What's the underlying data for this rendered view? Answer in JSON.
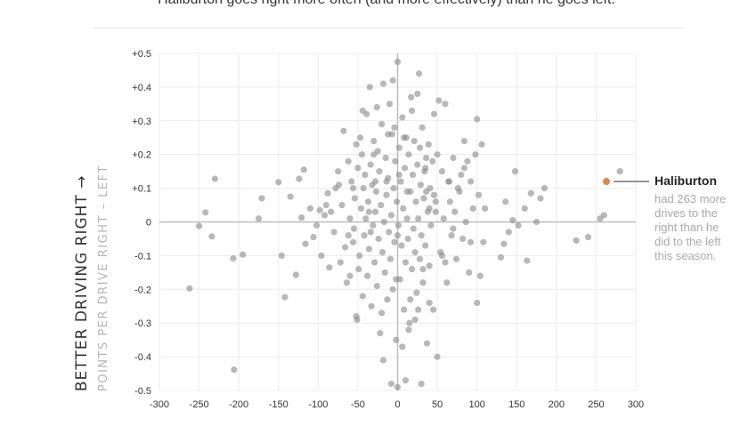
{
  "subtitle": "Haliburton goes right more often (and more effectively) than he goes left.",
  "chart_data": {
    "type": "scatter",
    "title": "",
    "xlabel": "",
    "ylabel": "BETTER DRIVING RIGHT →",
    "ylabel_sub": "POINTS PER DRIVE RIGHT – LEFT",
    "xlim": [
      -300,
      300
    ],
    "ylim": [
      -0.5,
      0.5
    ],
    "x_ticks": [
      "-300",
      "-250",
      "-200",
      "-150",
      "-100",
      "-50",
      "0",
      "50",
      "100",
      "150",
      "200",
      "250",
      "300"
    ],
    "y_ticks": [
      "+0.5",
      "+0.4",
      "+0.3",
      "+0.2",
      "+0.1",
      "0",
      "-0.1",
      "-0.2",
      "-0.3",
      "-0.4",
      "-0.5"
    ],
    "grid": true,
    "colors": {
      "points": "#8c8c8c",
      "highlight": "#d9884f",
      "grid": "#ececec",
      "zero_axis": "#bdbdbd"
    },
    "highlight": {
      "name": "Haliburton",
      "x": 263,
      "y": 0.12,
      "text_lines": [
        "had 263 more",
        "drives to the",
        "right than he",
        "did to the left",
        "this season."
      ]
    },
    "points": [
      [
        -262,
        -0.197
      ],
      [
        -250,
        -0.012
      ],
      [
        -242,
        0.028
      ],
      [
        -234,
        -0.043
      ],
      [
        -230,
        0.128
      ],
      [
        -207,
        -0.108
      ],
      [
        -206,
        -0.438
      ],
      [
        -195,
        -0.097
      ],
      [
        -175,
        0.01
      ],
      [
        -171,
        0.07
      ],
      [
        -150,
        0.118
      ],
      [
        -146,
        -0.1
      ],
      [
        -142,
        -0.223
      ],
      [
        -135,
        0.075
      ],
      [
        -128,
        -0.157
      ],
      [
        -124,
        0.128
      ],
      [
        -121,
        0.013
      ],
      [
        -118,
        0.155
      ],
      [
        -116,
        -0.065
      ],
      [
        -110,
        0.04
      ],
      [
        -106,
        -0.045
      ],
      [
        -102,
        -0.01
      ],
      [
        -96,
        -0.1
      ],
      [
        -92,
        0.02
      ],
      [
        -88,
        0.085
      ],
      [
        -86,
        -0.135
      ],
      [
        -84,
        0.03
      ],
      [
        -80,
        -0.03
      ],
      [
        -78,
        0.1
      ],
      [
        -75,
        0.15
      ],
      [
        -72,
        -0.12
      ],
      [
        -70,
        0.05
      ],
      [
        -68,
        0.27
      ],
      [
        -66,
        -0.075
      ],
      [
        -64,
        -0.18
      ],
      [
        -62,
        0.18
      ],
      [
        -60,
        0.01
      ],
      [
        -58,
        0.12
      ],
      [
        -56,
        -0.06
      ],
      [
        -55,
        -0.02
      ],
      [
        -54,
        0.07
      ],
      [
        -52,
        0.23
      ],
      [
        -51,
        -0.29
      ],
      [
        -50,
        0.16
      ],
      [
        -49,
        -0.14
      ],
      [
        -48,
        -0.1
      ],
      [
        -47,
        0.25
      ],
      [
        -46,
        0.04
      ],
      [
        -45,
        0.2
      ],
      [
        -44,
        -0.22
      ],
      [
        -43,
        0.1
      ],
      [
        -42,
        -0.04
      ],
      [
        -41,
        0.14
      ],
      [
        -40,
        0.01
      ],
      [
        -39,
        0.32
      ],
      [
        -38,
        -0.16
      ],
      [
        -37,
        0.06
      ],
      [
        -36,
        -0.08
      ],
      [
        -35,
        0.4
      ],
      [
        -34,
        0.17
      ],
      [
        -33,
        -0.25
      ],
      [
        -32,
        0.11
      ],
      [
        -31,
        -0.01
      ],
      [
        -30,
        0.24
      ],
      [
        -29,
        -0.12
      ],
      [
        -28,
        0.03
      ],
      [
        -27,
        0.09
      ],
      [
        -26,
        -0.19
      ],
      [
        -25,
        0.21
      ],
      [
        -24,
        -0.05
      ],
      [
        -23,
        0.15
      ],
      [
        -22,
        -0.33
      ],
      [
        -21,
        0.05
      ],
      [
        -20,
        0.29
      ],
      [
        -19,
        -0.09
      ],
      [
        -18,
        0.41
      ],
      [
        -17,
        0.0
      ],
      [
        -16,
        -0.15
      ],
      [
        -15,
        0.19
      ],
      [
        -14,
        0.08
      ],
      [
        -13,
        -0.23
      ],
      [
        -12,
        0.13
      ],
      [
        -11,
        -0.03
      ],
      [
        -10,
        0.35
      ],
      [
        -9,
        -0.11
      ],
      [
        -8,
        0.02
      ],
      [
        -7,
        0.26
      ],
      [
        -6,
        -0.2
      ],
      [
        -5,
        0.1
      ],
      [
        -4,
        -0.06
      ],
      [
        -3,
        0.18
      ],
      [
        -2,
        -0.35
      ],
      [
        -1,
        0.06
      ],
      [
        0,
        0.475
      ],
      [
        1,
        -0.01
      ],
      [
        2,
        0.22
      ],
      [
        3,
        -0.17
      ],
      [
        4,
        0.12
      ],
      [
        5,
        -0.07
      ],
      [
        6,
        0.31
      ],
      [
        7,
        0.04
      ],
      [
        8,
        -0.26
      ],
      [
        9,
        0.16
      ],
      [
        10,
        -0.12
      ],
      [
        11,
        0.25
      ],
      [
        12,
        0.01
      ],
      [
        13,
        -0.05
      ],
      [
        14,
        0.2
      ],
      [
        15,
        -0.3
      ],
      [
        16,
        0.09
      ],
      [
        17,
        0.37
      ],
      [
        18,
        -0.14
      ],
      [
        19,
        0.14
      ],
      [
        20,
        -0.02
      ],
      [
        21,
        0.24
      ],
      [
        22,
        -0.09
      ],
      [
        23,
        0.06
      ],
      [
        24,
        -0.21
      ],
      [
        25,
        0.17
      ],
      [
        26,
        0.01
      ],
      [
        27,
        0.44
      ],
      [
        28,
        -0.11
      ],
      [
        29,
        0.11
      ],
      [
        30,
        -0.04
      ],
      [
        31,
        0.28
      ],
      [
        32,
        -0.18
      ],
      [
        33,
        0.07
      ],
      [
        34,
        0.15
      ],
      [
        35,
        -0.07
      ],
      [
        36,
        0.19
      ],
      [
        37,
        -0.36
      ],
      [
        38,
        0.03
      ],
      [
        39,
        0.23
      ],
      [
        40,
        -0.13
      ],
      [
        41,
        0.1
      ],
      [
        42,
        -0.01
      ],
      [
        44,
        0.18
      ],
      [
        45,
        -0.26
      ],
      [
        46,
        0.08
      ],
      [
        48,
        0.06
      ],
      [
        50,
        0.2
      ],
      [
        52,
        0.36
      ],
      [
        54,
        -0.09
      ],
      [
        56,
        0.15
      ],
      [
        58,
        0.01
      ],
      [
        60,
        0.35
      ],
      [
        62,
        -0.18
      ],
      [
        64,
        0.12
      ],
      [
        66,
        0.06
      ],
      [
        68,
        -0.04
      ],
      [
        70,
        0.19
      ],
      [
        72,
        0.03
      ],
      [
        74,
        -0.11
      ],
      [
        76,
        0.1
      ],
      [
        78,
        0.09
      ],
      [
        80,
        0.14
      ],
      [
        82,
        -0.05
      ],
      [
        84,
        0.24
      ],
      [
        86,
        0.0
      ],
      [
        88,
        0.18
      ],
      [
        90,
        -0.15
      ],
      [
        92,
        0.12
      ],
      [
        95,
        0.04
      ],
      [
        98,
        0.2
      ],
      [
        100,
        0.305
      ],
      [
        102,
        0.08
      ],
      [
        104,
        -0.16
      ],
      [
        106,
        0.23
      ],
      [
        108,
        -0.06
      ],
      [
        110,
        0.04
      ],
      [
        130,
        -0.105
      ],
      [
        134,
        -0.065
      ],
      [
        136,
        0.06
      ],
      [
        140,
        -0.03
      ],
      [
        145,
        0.005
      ],
      [
        148,
        0.15
      ],
      [
        152,
        -0.01
      ],
      [
        160,
        0.04
      ],
      [
        163,
        -0.115
      ],
      [
        168,
        0.085
      ],
      [
        175,
        0.0
      ],
      [
        180,
        0.07
      ],
      [
        185,
        0.1
      ],
      [
        225,
        -0.055
      ],
      [
        240,
        -0.045
      ],
      [
        255,
        0.01
      ],
      [
        260,
        0.02
      ],
      [
        280,
        0.15
      ],
      [
        -52,
        -0.28
      ],
      [
        -44,
        0.33
      ],
      [
        -28,
        0.12
      ],
      [
        -18,
        -0.41
      ],
      [
        -6,
        0.42
      ],
      [
        0,
        -0.04
      ],
      [
        6,
        -0.37
      ],
      [
        18,
        0.33
      ],
      [
        30,
        -0.48
      ],
      [
        35,
        0.16
      ],
      [
        50,
        -0.4
      ],
      [
        -8,
        -0.48
      ],
      [
        0,
        -0.49
      ],
      [
        10,
        -0.47
      ],
      [
        32,
        -0.14
      ],
      [
        -2,
        -0.17
      ],
      [
        -12,
        0.26
      ],
      [
        22,
        -0.29
      ],
      [
        40,
        -0.24
      ],
      [
        48,
        0.03
      ],
      [
        12,
        0.09
      ],
      [
        -20,
        -0.27
      ],
      [
        56,
        -0.1
      ],
      [
        -30,
        0.2
      ],
      [
        25,
        0.38
      ],
      [
        -14,
        0.12
      ],
      [
        14,
        -0.32
      ],
      [
        -56,
        0.1
      ],
      [
        46,
        0.32
      ],
      [
        65,
        0.12
      ],
      [
        84,
        0.16
      ],
      [
        92,
        -0.06
      ],
      [
        -62,
        -0.04
      ],
      [
        -74,
        0.11
      ],
      [
        -90,
        0.05
      ],
      [
        -98,
        0.035
      ],
      [
        -26,
        0.34
      ],
      [
        2,
        0.14
      ],
      [
        -34,
        -0.03
      ],
      [
        26,
        -0.26
      ],
      [
        36,
        0.09
      ],
      [
        -4,
        0.28
      ],
      [
        16,
        -0.23
      ],
      [
        60,
        -0.12
      ],
      [
        70,
        -0.02
      ],
      [
        100,
        -0.24
      ],
      [
        -60,
        -0.16
      ],
      [
        -36,
        0.03
      ],
      [
        8,
        0.25
      ],
      [
        28,
        0.22
      ],
      [
        40,
        0.04
      ]
    ]
  }
}
